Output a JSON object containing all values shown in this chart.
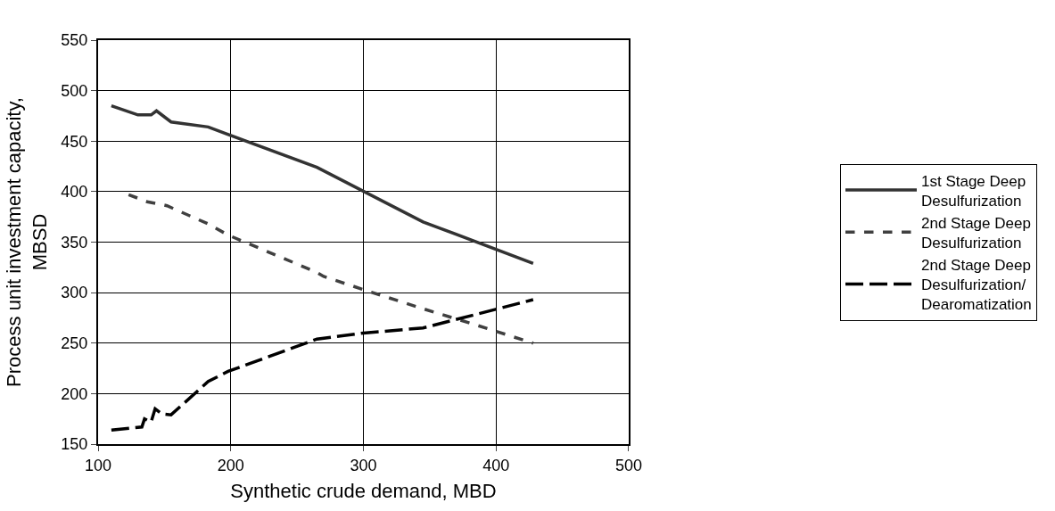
{
  "chart_data": {
    "type": "line",
    "xlabel": "Synthetic crude demand, MBD",
    "ylabel": "Process unit investment capacity,\nMBSD",
    "xlim": [
      100,
      500
    ],
    "xticks": [
      100,
      200,
      300,
      400,
      500
    ],
    "ylim": [
      150,
      550
    ],
    "yticks": [
      150,
      200,
      250,
      300,
      350,
      400,
      450,
      500,
      550
    ],
    "grid": true,
    "legend": "right",
    "marker": "none",
    "series": [
      {
        "name": "1st Stage Deep\nDesulfurization",
        "color": "#333333",
        "line_style": "solid",
        "x": [
          110,
          130,
          140,
          144,
          155,
          183,
          265,
          345,
          428
        ],
        "values": [
          485,
          476,
          476,
          480,
          469,
          464,
          424,
          370,
          329
        ]
      },
      {
        "name": "2nd Stage Deep\nDesulfurization",
        "color": "#404040",
        "line_style": "dotted",
        "x": [
          123,
          137,
          145,
          152,
          183,
          198,
          265,
          270,
          300,
          345,
          380,
          428
        ],
        "values": [
          397,
          390,
          388,
          386,
          368,
          357,
          320,
          316,
          303,
          284,
          270,
          250
        ]
      },
      {
        "name": "2nd Stage Deep\nDesulfurization/\nDearomatization",
        "color": "#000000",
        "line_style": "dashed",
        "x": [
          110,
          133,
          135,
          140,
          143,
          148,
          155,
          183,
          198,
          265,
          300,
          345,
          428
        ],
        "values": [
          164,
          167,
          175,
          172,
          185,
          180,
          179,
          212,
          222,
          254,
          260,
          265,
          293
        ]
      }
    ]
  }
}
